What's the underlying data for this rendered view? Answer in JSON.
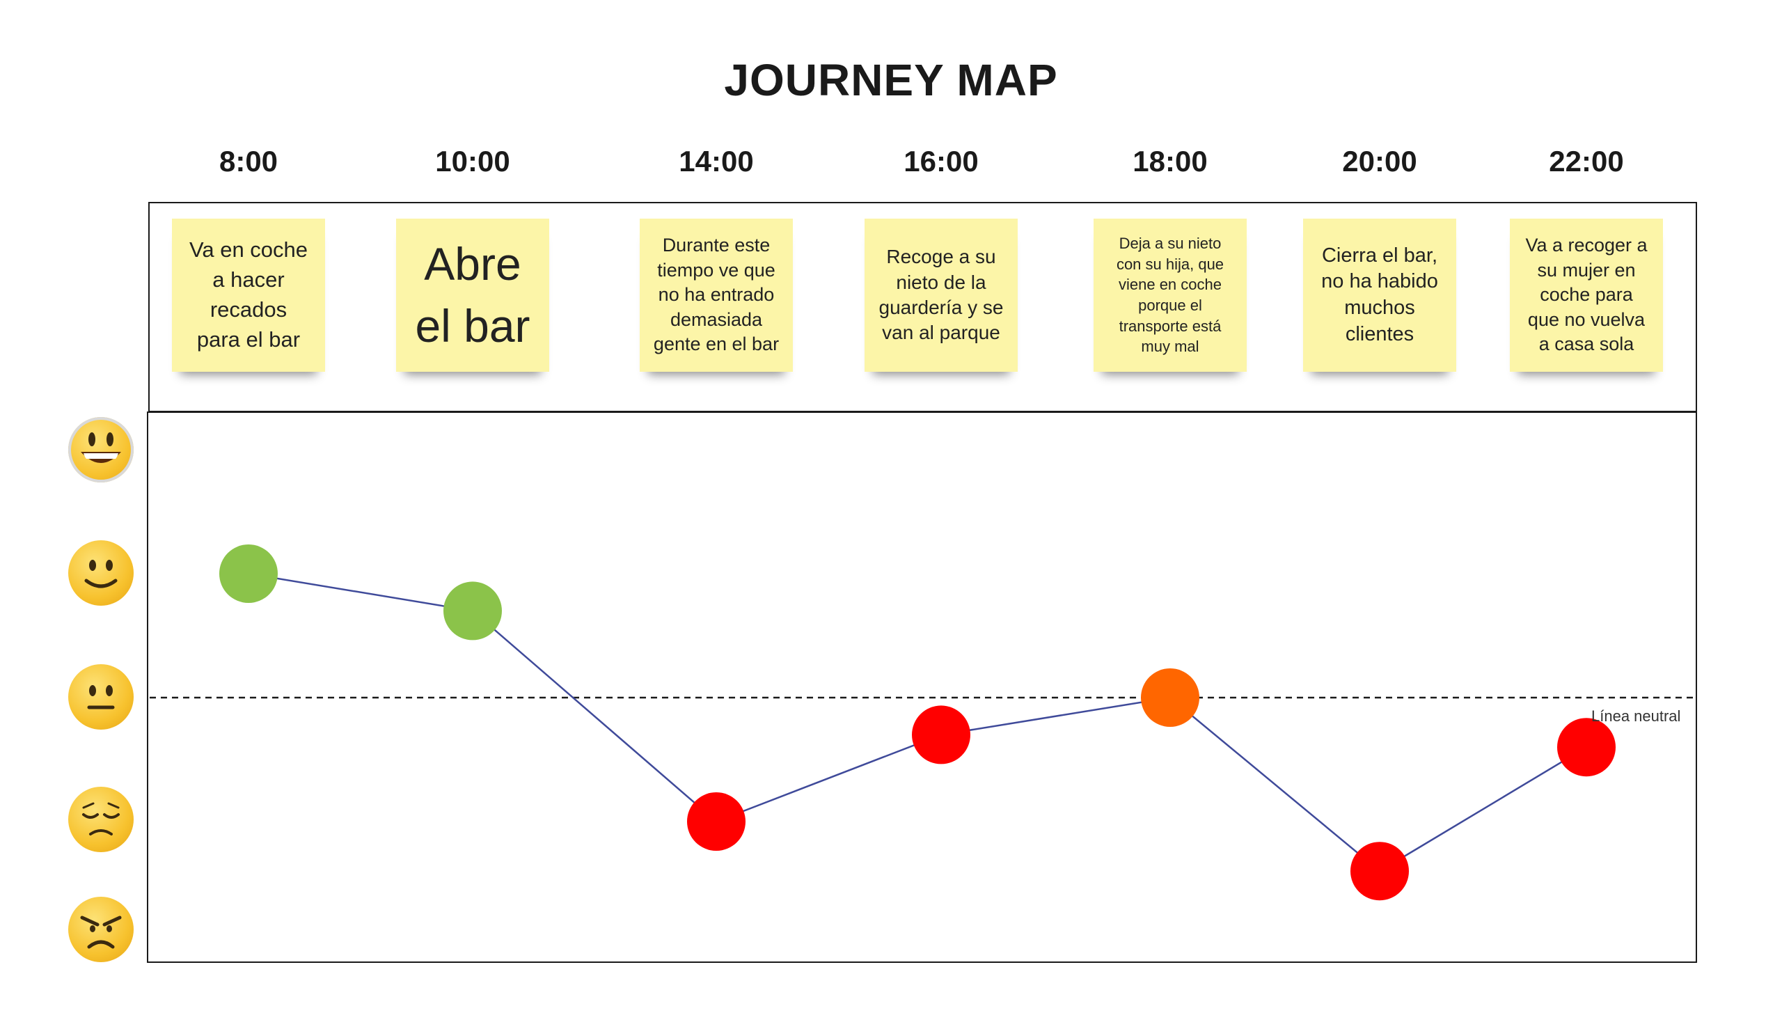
{
  "title": "JOURNEY MAP",
  "times": [
    "8:00",
    "10:00",
    "14:00",
    "16:00",
    "18:00",
    "20:00",
    "22:00"
  ],
  "notes": [
    "Va en coche\na hacer\nrecados\npara el bar",
    "Abre\nel bar",
    "Durante este\ntiempo ve que\nno ha entrado\ndemasiada\ngente en el bar",
    "Recoge a su\nnieto de la\nguardería y se\nvan al parque",
    "Deja a su nieto\ncon su hija, que\nviene en coche\nporque el\ntransporte está\nmuy mal",
    "Cierra el bar,\nno ha habido\nmuchos\nclientes",
    "Va a recoger a\nsu mujer en\ncoche para\nque no vuelva\na casa sola"
  ],
  "neutral_label": "Línea neutral",
  "emotion_scale": [
    "very-happy-face-icon",
    "happy-face-icon",
    "neutral-face-icon",
    "sad-face-icon",
    "angry-face-icon"
  ],
  "colors": {
    "positive": "#8bc34a",
    "neutral": "#ff6600",
    "negative": "#ff0000",
    "line": "#3f4a9a",
    "note": "#fcf5a8"
  },
  "chart_data": {
    "type": "line",
    "x": [
      "8:00",
      "10:00",
      "14:00",
      "16:00",
      "18:00",
      "20:00",
      "22:00"
    ],
    "y": [
      1.0,
      0.7,
      -1.0,
      -0.3,
      0.0,
      -1.4,
      -0.4
    ],
    "point_colors": [
      "#8bc34a",
      "#8bc34a",
      "#ff0000",
      "#ff0000",
      "#ff6600",
      "#ff0000",
      "#ff0000"
    ]
  }
}
